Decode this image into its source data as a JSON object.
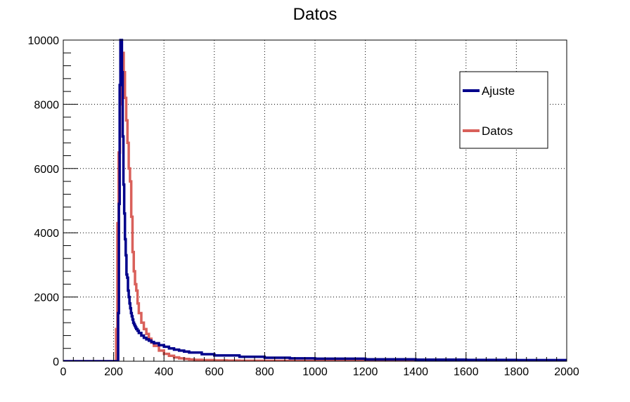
{
  "chart_data": {
    "type": "line",
    "title": "Datos",
    "xlabel": "",
    "ylabel": "",
    "xlim": [
      0,
      2000
    ],
    "ylim": [
      0,
      10000
    ],
    "x_ticks": [
      "0",
      "200",
      "400",
      "600",
      "800",
      "1000",
      "1200",
      "1400",
      "1600",
      "1800",
      "2000"
    ],
    "y_ticks": [
      "0",
      "2000",
      "4000",
      "6000",
      "8000",
      "10000"
    ],
    "grid": true,
    "legend_position": "top-right",
    "series": [
      {
        "name": "Ajuste",
        "color": "#00008b",
        "style": "step",
        "x": [
          0,
          215,
          218,
          221,
          224,
          227,
          230,
          233,
          236,
          239,
          242,
          245,
          248,
          251,
          254,
          257,
          260,
          263,
          266,
          269,
          272,
          275,
          278,
          281,
          284,
          287,
          290,
          295,
          300,
          310,
          320,
          330,
          340,
          350,
          360,
          380,
          400,
          420,
          440,
          460,
          480,
          500,
          550,
          600,
          700,
          800,
          900,
          1000,
          1200,
          1400,
          1600,
          1800,
          2000
        ],
        "y": [
          0,
          0,
          1500,
          4900,
          8600,
          10000,
          10000,
          9000,
          7000,
          5500,
          4600,
          3800,
          3300,
          2700,
          2600,
          2200,
          2000,
          1800,
          1650,
          1500,
          1400,
          1300,
          1200,
          1150,
          1100,
          1050,
          1000,
          950,
          880,
          800,
          730,
          680,
          640,
          600,
          560,
          500,
          450,
          400,
          360,
          330,
          300,
          270,
          220,
          180,
          140,
          110,
          90,
          80,
          60,
          50,
          40,
          35,
          30
        ]
      },
      {
        "name": "Datos",
        "color": "#d9605a",
        "style": "step",
        "x": [
          0,
          205,
          210,
          215,
          220,
          225,
          230,
          235,
          240,
          245,
          250,
          255,
          260,
          265,
          270,
          275,
          280,
          285,
          290,
          295,
          300,
          310,
          320,
          330,
          340,
          350,
          360,
          380,
          400,
          420,
          440,
          460,
          480,
          500,
          520,
          550,
          600,
          650,
          700,
          800,
          900,
          1000,
          1200,
          1400,
          1600,
          1800,
          2000
        ],
        "y": [
          0,
          0,
          1000,
          4300,
          6500,
          8000,
          9500,
          9600,
          9000,
          8200,
          7500,
          6800,
          6000,
          5600,
          4500,
          3400,
          2800,
          2400,
          2200,
          1800,
          1500,
          1200,
          1000,
          850,
          700,
          580,
          480,
          330,
          230,
          170,
          120,
          90,
          70,
          55,
          45,
          35,
          25,
          18,
          14,
          10,
          8,
          6,
          5,
          4,
          3,
          2,
          1
        ]
      }
    ]
  }
}
